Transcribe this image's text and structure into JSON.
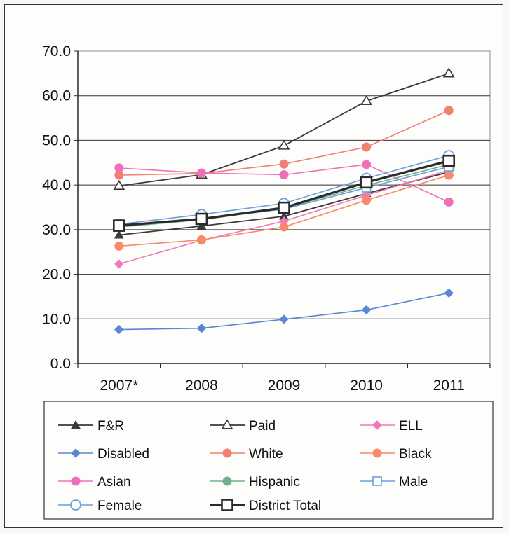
{
  "chart_data": {
    "type": "line",
    "categories": [
      "2007*",
      "2008",
      "2009",
      "2010",
      "2011"
    ],
    "ylim": [
      0,
      70
    ],
    "yticks": [
      "0.0",
      "10.0",
      "20.0",
      "30.0",
      "40.0",
      "50.0",
      "60.0",
      "70.0"
    ],
    "grid": true,
    "legend_position": "bottom",
    "series": [
      {
        "name": "F&R",
        "values": [
          28.8,
          30.8,
          33.0,
          38.1,
          42.9
        ],
        "color": "#3a3a3a",
        "marker": "filled-triangle",
        "width": 1.8
      },
      {
        "name": "Paid",
        "values": [
          39.8,
          42.3,
          48.8,
          58.8,
          65.0
        ],
        "color": "#3a3a3a",
        "marker": "open-triangle",
        "width": 1.8
      },
      {
        "name": "ELL",
        "values": [
          22.3,
          27.6,
          31.9,
          37.7,
          43.3
        ],
        "color": "#f07ab8",
        "marker": "diamond",
        "width": 1.6
      },
      {
        "name": "Disabled",
        "values": [
          7.6,
          7.9,
          9.9,
          12.0,
          15.8
        ],
        "color": "#5b86d4",
        "marker": "diamond",
        "width": 1.6
      },
      {
        "name": "White",
        "values": [
          42.2,
          42.6,
          44.7,
          48.5,
          56.7
        ],
        "color": "#f08070",
        "marker": "circle",
        "width": 1.6
      },
      {
        "name": "Black",
        "values": [
          26.3,
          27.7,
          30.6,
          36.6,
          42.2
        ],
        "color": "#f8896a",
        "marker": "circle",
        "width": 1.6
      },
      {
        "name": "Asian",
        "values": [
          43.8,
          42.7,
          42.3,
          44.6,
          36.2
        ],
        "color": "#f070b8",
        "marker": "circle",
        "width": 1.6
      },
      {
        "name": "Hispanic",
        "values": [
          30.6,
          32.2,
          34.8,
          39.9,
          44.6
        ],
        "color": "#6db38a",
        "marker": "circle",
        "width": 1.6
      },
      {
        "name": "Male",
        "values": [
          30.8,
          32.4,
          34.6,
          39.4,
          44.1
        ],
        "color": "#6aa0dc",
        "marker": "square-open",
        "width": 1.6
      },
      {
        "name": "Female",
        "values": [
          31.2,
          33.4,
          35.9,
          41.5,
          46.6
        ],
        "color": "#6aa0dc",
        "marker": "circle-open",
        "width": 1.6
      },
      {
        "name": "District Total",
        "values": [
          30.9,
          32.4,
          34.9,
          40.6,
          45.4
        ],
        "color": "#2b2b2b",
        "marker": "square-open",
        "width": 3.2
      }
    ]
  }
}
